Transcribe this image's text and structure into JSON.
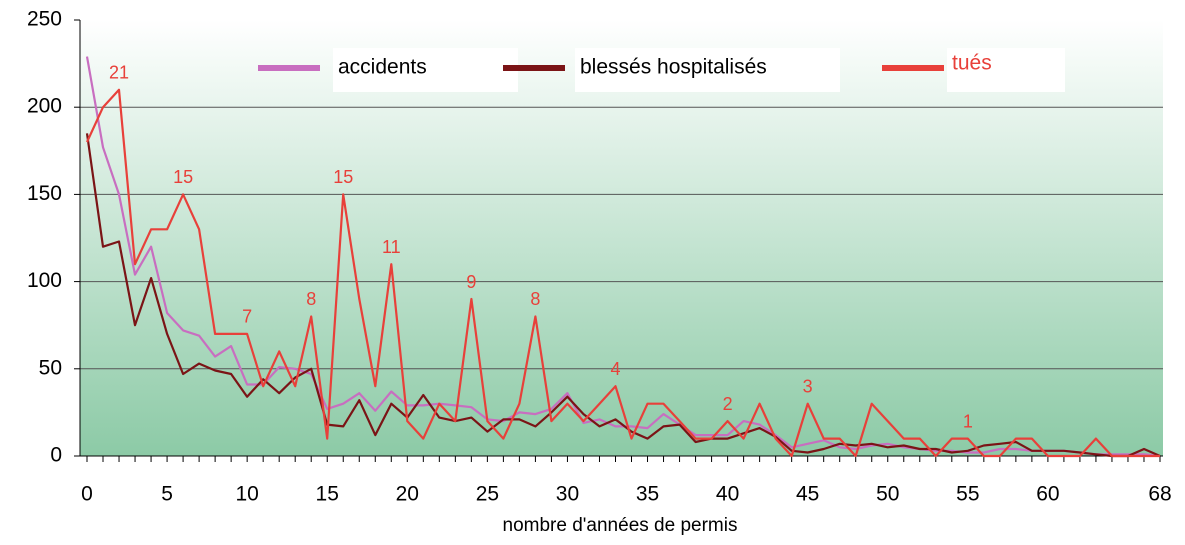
{
  "chart_data": {
    "type": "line",
    "x_label": "nombre d'années de permis",
    "categories": [
      "0",
      null,
      null,
      null,
      null,
      "5",
      null,
      null,
      null,
      null,
      "10",
      null,
      null,
      null,
      null,
      "15",
      null,
      null,
      null,
      null,
      "20",
      null,
      null,
      null,
      null,
      "25",
      null,
      null,
      null,
      null,
      "30",
      null,
      null,
      null,
      null,
      "35",
      null,
      null,
      null,
      null,
      "40",
      null,
      null,
      null,
      null,
      "45",
      null,
      null,
      null,
      null,
      "50",
      null,
      null,
      null,
      null,
      "55",
      null,
      null,
      null,
      null,
      "60",
      null,
      null,
      null,
      null,
      null,
      null,
      "68"
    ],
    "ylim": [
      0,
      250
    ],
    "yticks": [
      0,
      50,
      100,
      150,
      200,
      250
    ],
    "grid": true,
    "legend": "top",
    "series": [
      {
        "name": "accidents",
        "color": "#c86ec0",
        "values": [
          229,
          177,
          150,
          104,
          120,
          82,
          72,
          69,
          57,
          63,
          41,
          41,
          51,
          50,
          47,
          27,
          30,
          36,
          26,
          37,
          29,
          29,
          30,
          29,
          28,
          21,
          20,
          25,
          24,
          27,
          36,
          19,
          21,
          17,
          17,
          16,
          24,
          18,
          12,
          12,
          12,
          20,
          18,
          12,
          5,
          7,
          9,
          5,
          4,
          6,
          7,
          5,
          4,
          3,
          3,
          2,
          2,
          4,
          4,
          3,
          3,
          3,
          2,
          1,
          1,
          1,
          1,
          0
        ]
      },
      {
        "name": "blessés hospitalisés",
        "color": "#7b1416",
        "values": [
          185,
          120,
          123,
          75,
          102,
          70,
          47,
          53,
          49,
          47,
          34,
          44,
          36,
          45,
          50,
          18,
          17,
          32,
          12,
          30,
          22,
          35,
          22,
          20,
          22,
          14,
          21,
          21,
          17,
          25,
          34,
          24,
          17,
          21,
          14,
          10,
          17,
          18,
          8,
          10,
          10,
          13,
          16,
          11,
          3,
          2,
          4,
          7,
          6,
          7,
          5,
          6,
          4,
          4,
          2,
          3,
          6,
          7,
          8,
          3,
          3,
          3,
          2,
          1,
          0,
          0,
          4,
          0
        ]
      },
      {
        "name": "tués",
        "color": "#e8403a",
        "values": [
          180,
          200,
          210,
          110,
          130,
          130,
          150,
          130,
          70,
          70,
          70,
          40,
          60,
          40,
          80,
          10,
          150,
          90,
          40,
          110,
          20,
          10,
          30,
          20,
          90,
          20,
          10,
          30,
          80,
          20,
          30,
          20,
          30,
          40,
          10,
          30,
          30,
          20,
          10,
          10,
          20,
          10,
          30,
          10,
          0,
          30,
          10,
          10,
          0,
          30,
          20,
          10,
          10,
          0,
          10,
          10,
          0,
          0,
          10,
          10,
          0,
          0,
          0,
          10,
          0,
          0,
          0,
          0
        ],
        "value_labels": [
          null,
          null,
          "21",
          null,
          null,
          null,
          "15",
          null,
          null,
          null,
          "7",
          null,
          null,
          null,
          "8",
          null,
          "15",
          null,
          null,
          "11",
          null,
          null,
          null,
          null,
          "9",
          null,
          null,
          null,
          "8",
          null,
          null,
          null,
          null,
          "4",
          null,
          null,
          null,
          null,
          null,
          null,
          "2",
          null,
          null,
          null,
          null,
          "3",
          null,
          null,
          null,
          null,
          null,
          null,
          null,
          null,
          null,
          "1",
          null,
          null,
          null,
          null,
          null,
          null,
          null,
          null,
          null,
          null,
          null,
          null
        ]
      }
    ]
  }
}
